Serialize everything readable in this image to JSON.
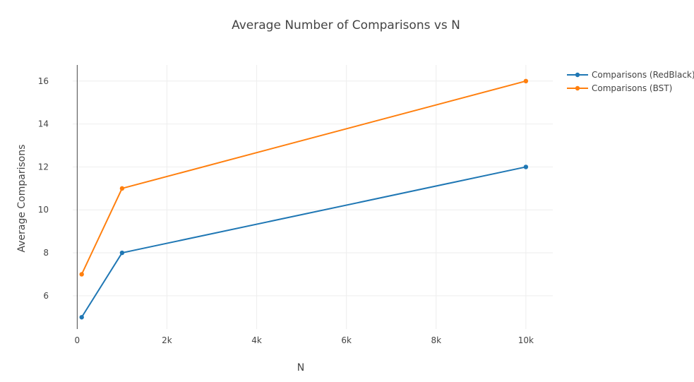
{
  "chart_data": {
    "type": "line",
    "title": "Average Number of Comparisons vs N",
    "xlabel": "N",
    "ylabel": "Average Comparisons",
    "x": [
      100,
      1000,
      10000
    ],
    "series": [
      {
        "name": "Comparisons (RedBlack)",
        "values": [
          5,
          8,
          12
        ],
        "color": "#1f77b4"
      },
      {
        "name": "Comparisons (BST)",
        "values": [
          7,
          11,
          16
        ],
        "color": "#ff7f0e"
      }
    ],
    "xlim": [
      -100,
      10600
    ],
    "ylim": [
      4.45,
      16.75
    ],
    "xticks": [
      {
        "value": 0,
        "label": "0"
      },
      {
        "value": 2000,
        "label": "2k"
      },
      {
        "value": 4000,
        "label": "4k"
      },
      {
        "value": 6000,
        "label": "6k"
      },
      {
        "value": 8000,
        "label": "8k"
      },
      {
        "value": 10000,
        "label": "10k"
      }
    ],
    "yticks": [
      {
        "value": 6,
        "label": "6"
      },
      {
        "value": 8,
        "label": "8"
      },
      {
        "value": 10,
        "label": "10"
      },
      {
        "value": 12,
        "label": "12"
      },
      {
        "value": 14,
        "label": "14"
      },
      {
        "value": 16,
        "label": "16"
      }
    ],
    "grid": true,
    "legend": "top-right"
  }
}
